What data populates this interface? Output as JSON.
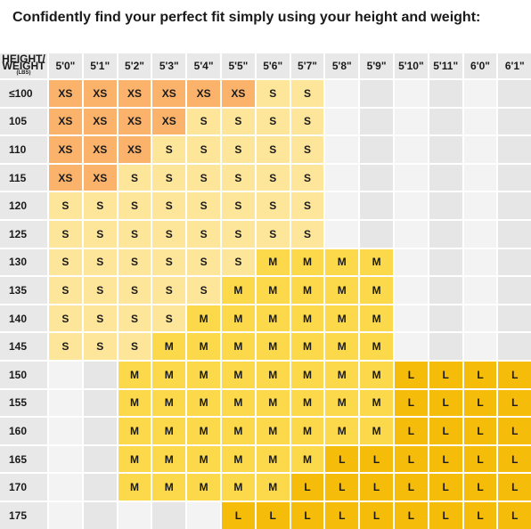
{
  "title": "Confidently find your perfect fit simply using your height and weight:",
  "corner": {
    "line1": "HEIGHT/",
    "line2": "WEIGHT",
    "line3": "(LBS)"
  },
  "heights": [
    "5'0\"",
    "5'1\"",
    "5'2\"",
    "5'3\"",
    "5'4\"",
    "5'5\"",
    "5'6\"",
    "5'7\"",
    "5'8\"",
    "5'9\"",
    "5'10\"",
    "5'11\"",
    "6'0\"",
    "6'1\""
  ],
  "rows": [
    {
      "weight": "≤100",
      "sizes": [
        "XS",
        "XS",
        "XS",
        "XS",
        "XS",
        "XS",
        "S",
        "S",
        "",
        "",
        "",
        "",
        "",
        ""
      ]
    },
    {
      "weight": "105",
      "sizes": [
        "XS",
        "XS",
        "XS",
        "XS",
        "S",
        "S",
        "S",
        "S",
        "",
        "",
        "",
        "",
        "",
        ""
      ]
    },
    {
      "weight": "110",
      "sizes": [
        "XS",
        "XS",
        "XS",
        "S",
        "S",
        "S",
        "S",
        "S",
        "",
        "",
        "",
        "",
        "",
        ""
      ]
    },
    {
      "weight": "115",
      "sizes": [
        "XS",
        "XS",
        "S",
        "S",
        "S",
        "S",
        "S",
        "S",
        "",
        "",
        "",
        "",
        "",
        ""
      ]
    },
    {
      "weight": "120",
      "sizes": [
        "S",
        "S",
        "S",
        "S",
        "S",
        "S",
        "S",
        "S",
        "",
        "",
        "",
        "",
        "",
        ""
      ]
    },
    {
      "weight": "125",
      "sizes": [
        "S",
        "S",
        "S",
        "S",
        "S",
        "S",
        "S",
        "S",
        "",
        "",
        "",
        "",
        "",
        ""
      ]
    },
    {
      "weight": "130",
      "sizes": [
        "S",
        "S",
        "S",
        "S",
        "S",
        "S",
        "M",
        "M",
        "M",
        "M",
        "",
        "",
        "",
        ""
      ]
    },
    {
      "weight": "135",
      "sizes": [
        "S",
        "S",
        "S",
        "S",
        "S",
        "M",
        "M",
        "M",
        "M",
        "M",
        "",
        "",
        "",
        ""
      ]
    },
    {
      "weight": "140",
      "sizes": [
        "S",
        "S",
        "S",
        "S",
        "M",
        "M",
        "M",
        "M",
        "M",
        "M",
        "",
        "",
        "",
        ""
      ]
    },
    {
      "weight": "145",
      "sizes": [
        "S",
        "S",
        "S",
        "M",
        "M",
        "M",
        "M",
        "M",
        "M",
        "M",
        "",
        "",
        "",
        ""
      ]
    },
    {
      "weight": "150",
      "sizes": [
        "",
        "",
        "M",
        "M",
        "M",
        "M",
        "M",
        "M",
        "M",
        "M",
        "L",
        "L",
        "L",
        "L"
      ]
    },
    {
      "weight": "155",
      "sizes": [
        "",
        "",
        "M",
        "M",
        "M",
        "M",
        "M",
        "M",
        "M",
        "M",
        "L",
        "L",
        "L",
        "L"
      ]
    },
    {
      "weight": "160",
      "sizes": [
        "",
        "",
        "M",
        "M",
        "M",
        "M",
        "M",
        "M",
        "M",
        "M",
        "L",
        "L",
        "L",
        "L"
      ]
    },
    {
      "weight": "165",
      "sizes": [
        "",
        "",
        "M",
        "M",
        "M",
        "M",
        "M",
        "M",
        "L",
        "L",
        "L",
        "L",
        "L",
        "L"
      ]
    },
    {
      "weight": "170",
      "sizes": [
        "",
        "",
        "M",
        "M",
        "M",
        "M",
        "M",
        "L",
        "L",
        "L",
        "L",
        "L",
        "L",
        "L"
      ]
    },
    {
      "weight": "175",
      "sizes": [
        "",
        "",
        "",
        "",
        "",
        "L",
        "L",
        "L",
        "L",
        "L",
        "L",
        "L",
        "L",
        "L"
      ]
    }
  ],
  "colors": {
    "XS": "#fbb26a",
    "S": "#fde59a",
    "M": "#fbd94a",
    "L": "#f5bc0a",
    "empty_light": "#f3f3f3",
    "empty_dark": "#e6e6e6",
    "header": "#e8e8e8"
  }
}
